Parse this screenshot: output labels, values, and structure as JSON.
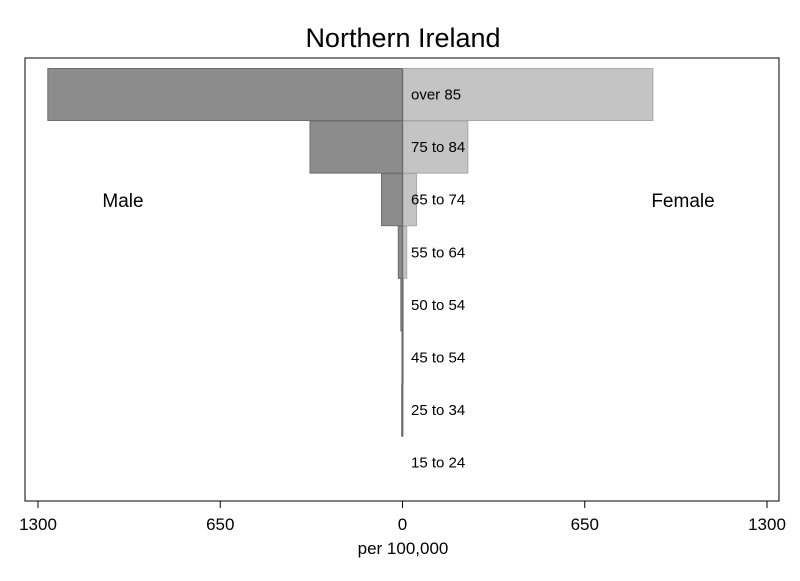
{
  "chart_data": {
    "type": "bar",
    "orientation": "horizontal",
    "layout": "population-pyramid",
    "title": "Northern Ireland",
    "xlabel": "per 100,000",
    "x_tick_labels": [
      "1300",
      "650",
      "0",
      "650",
      "1300"
    ],
    "xlim": [
      -1300,
      1300
    ],
    "grid": false,
    "categories": [
      "over 85",
      "75 to 84",
      "65 to 74",
      "55 to 64",
      "50 to 54",
      "45 to 54",
      "25 to 34",
      "15 to 24"
    ],
    "series": [
      {
        "name": "Male",
        "side": "left",
        "color": "#8c8c8c",
        "values": [
          1265,
          330,
          75,
          15,
          6,
          2,
          3,
          0
        ]
      },
      {
        "name": "Female",
        "side": "right",
        "color": "#c4c4c4",
        "values": [
          893,
          233,
          50,
          15,
          3,
          3,
          2,
          0
        ]
      }
    ]
  }
}
